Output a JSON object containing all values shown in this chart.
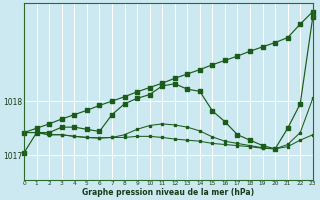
{
  "xlabel": "Graphe pression niveau de la mer (hPa)",
  "bg_color": "#cce8f0",
  "grid_color": "#ffffff",
  "line_color": "#1a5c1a",
  "y_ticks": [
    1017,
    1018
  ],
  "ylim": [
    1016.55,
    1019.8
  ],
  "xlim": [
    0,
    23
  ],
  "hours": [
    0,
    1,
    2,
    3,
    4,
    5,
    6,
    7,
    8,
    9,
    10,
    11,
    12,
    13,
    14,
    15,
    16,
    17,
    18,
    19,
    20,
    21,
    22,
    23
  ],
  "line_diag": [
    1017.42,
    1017.5,
    1017.58,
    1017.67,
    1017.75,
    1017.83,
    1017.92,
    1018.0,
    1018.08,
    1018.17,
    1018.25,
    1018.33,
    1018.42,
    1018.5,
    1018.58,
    1018.67,
    1018.75,
    1018.83,
    1018.92,
    1019.0,
    1019.08,
    1019.17,
    1019.42,
    1019.65
  ],
  "line_peak": [
    1017.05,
    1017.42,
    1017.42,
    1017.52,
    1017.52,
    1017.48,
    1017.44,
    1017.75,
    1017.95,
    1018.05,
    1018.12,
    1018.28,
    1018.32,
    1018.22,
    1018.18,
    1017.82,
    1017.62,
    1017.38,
    1017.28,
    1017.18,
    1017.12,
    1017.5,
    1017.95,
    1019.55
  ],
  "line_flat1": [
    1017.42,
    1017.42,
    1017.38,
    1017.38,
    1017.35,
    1017.33,
    1017.32,
    1017.33,
    1017.33,
    1017.35,
    1017.35,
    1017.33,
    1017.3,
    1017.28,
    1017.26,
    1017.22,
    1017.2,
    1017.18,
    1017.16,
    1017.13,
    1017.12,
    1017.16,
    1017.28,
    1017.38
  ],
  "line_flat2": [
    1017.42,
    1017.42,
    1017.38,
    1017.38,
    1017.35,
    1017.33,
    1017.32,
    1017.33,
    1017.38,
    1017.48,
    1017.55,
    1017.58,
    1017.56,
    1017.52,
    1017.45,
    1017.34,
    1017.26,
    1017.22,
    1017.18,
    1017.14,
    1017.12,
    1017.2,
    1017.42,
    1018.05
  ]
}
